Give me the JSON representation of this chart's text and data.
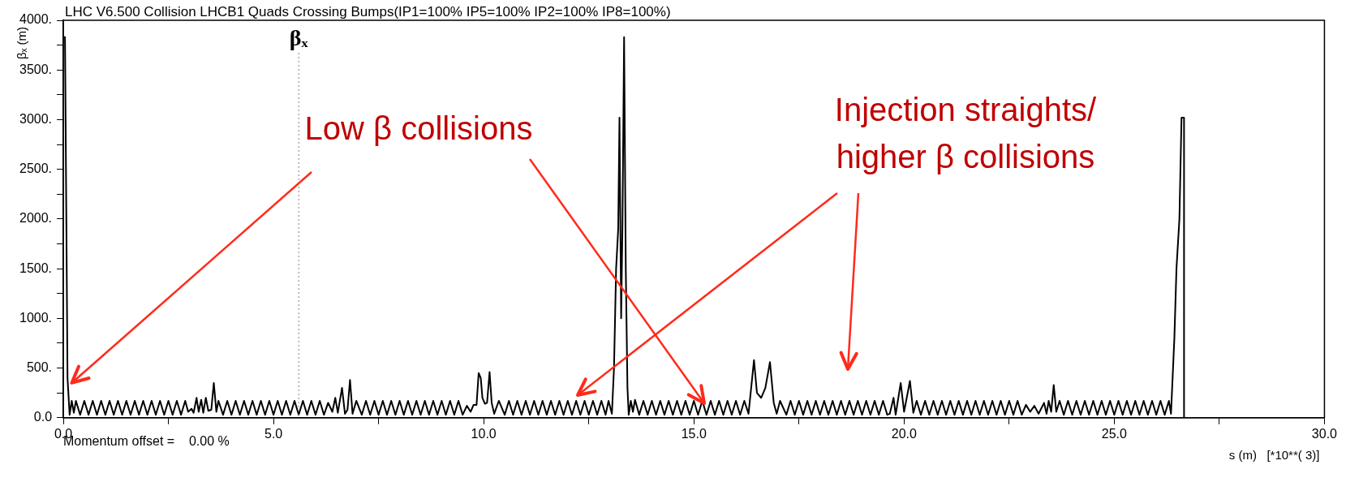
{
  "chart_data": {
    "type": "line",
    "title": "LHC V6.500 Collision LHCB1 Quads Crossing Bumps(IP1=100% IP5=100% IP2=100% IP8=100%)",
    "xlabel": "s (m)   [*10**( 3)]",
    "ylabel": "βₓ (m)",
    "annotations": [
      {
        "text": "Low β collisions",
        "x": 0.2,
        "y": 350
      },
      "Injection straights/",
      "higher β collisions",
      "Momentum offset =    0.00 %"
    ],
    "xlim": [
      0,
      30
    ],
    "ylim": [
      0,
      4000
    ],
    "xticks": [
      {
        "value": 0,
        "label": "0.0"
      },
      {
        "value": 2.5,
        "label": null
      },
      {
        "value": 5,
        "label": "5.0"
      },
      {
        "value": 7.5,
        "label": null
      },
      {
        "value": 10,
        "label": "10.0"
      },
      {
        "value": 12.5,
        "label": null
      },
      {
        "value": 15,
        "label": "15.0"
      },
      {
        "value": 17.5,
        "label": null
      },
      {
        "value": 20,
        "label": "20.0"
      },
      {
        "value": 22.5,
        "label": null
      },
      {
        "value": 25,
        "label": "25.0"
      },
      {
        "value": 27.5,
        "label": null
      },
      {
        "value": 30,
        "label": "30.0"
      }
    ],
    "yticks": [
      {
        "value": 0,
        "label": "0.0"
      },
      {
        "value": 250,
        "label": null
      },
      {
        "value": 500,
        "label": "500."
      },
      {
        "value": 750,
        "label": null
      },
      {
        "value": 1000,
        "label": "1000."
      },
      {
        "value": 1250,
        "label": null
      },
      {
        "value": 1500,
        "label": "1500."
      },
      {
        "value": 1750,
        "label": null
      },
      {
        "value": 2000,
        "label": "2000."
      },
      {
        "value": 2250,
        "label": null
      },
      {
        "value": 2500,
        "label": "2500."
      },
      {
        "value": 2750,
        "label": null
      },
      {
        "value": 3000,
        "label": "3000."
      },
      {
        "value": 3250,
        "label": null
      },
      {
        "value": 3500,
        "label": "3500."
      },
      {
        "value": 3750,
        "label": null
      },
      {
        "value": 4000,
        "label": "4000."
      }
    ],
    "ref_lines": [
      {
        "axis": "x",
        "value": 5.6,
        "label": "βₓ",
        "color": "#808080",
        "line_style": "dotted"
      }
    ],
    "grid": false,
    "legend": false,
    "marker": "none",
    "line_style": "solid",
    "series": [
      {
        "color": "#000000",
        "x": [
          0,
          0.04,
          0.1,
          0.15,
          0.2,
          0.25,
          0.3,
          0.4,
          0.5,
          0.6,
          0.7,
          0.8,
          0.9,
          1.0,
          1.1,
          1.2,
          1.3,
          1.4,
          1.5,
          1.6,
          1.7,
          1.8,
          1.9,
          2.0,
          2.1,
          2.2,
          2.3,
          2.4,
          2.5,
          2.6,
          2.7,
          2.8,
          2.9,
          2.97,
          3.05,
          3.1,
          3.17,
          3.22,
          3.28,
          3.33,
          3.39,
          3.45,
          3.52,
          3.58,
          3.64,
          3.69,
          3.8,
          3.9,
          4.0,
          4.1,
          4.2,
          4.3,
          4.4,
          4.5,
          4.6,
          4.7,
          4.8,
          4.9,
          5.0,
          5.1,
          5.2,
          5.3,
          5.4,
          5.5,
          5.6,
          5.7,
          5.8,
          5.9,
          6.0,
          6.1,
          6.2,
          6.3,
          6.4,
          6.47,
          6.53,
          6.63,
          6.7,
          6.76,
          6.82,
          6.88,
          6.97,
          7.1,
          7.2,
          7.3,
          7.4,
          7.5,
          7.6,
          7.7,
          7.8,
          7.9,
          8.0,
          8.1,
          8.2,
          8.3,
          8.4,
          8.5,
          8.6,
          8.7,
          8.8,
          8.9,
          9.0,
          9.1,
          9.2,
          9.3,
          9.4,
          9.5,
          9.6,
          9.69,
          9.76,
          9.83,
          9.88,
          9.93,
          9.97,
          10.03,
          10.08,
          10.14,
          10.19,
          10.25,
          10.36,
          10.5,
          10.6,
          10.7,
          10.8,
          10.9,
          11.0,
          11.1,
          11.2,
          11.3,
          11.4,
          11.5,
          11.6,
          11.7,
          11.8,
          11.9,
          12.0,
          12.1,
          12.2,
          12.3,
          12.4,
          12.5,
          12.6,
          12.7,
          12.8,
          12.9,
          12.97,
          13.05,
          13.1,
          13.15,
          13.2,
          13.23,
          13.27,
          13.3,
          13.34,
          13.38,
          13.42,
          13.45,
          13.5,
          13.55,
          13.6,
          13.7,
          13.8,
          13.9,
          14.0,
          14.1,
          14.2,
          14.3,
          14.4,
          14.5,
          14.6,
          14.7,
          14.8,
          14.9,
          15.0,
          15.1,
          15.2,
          15.3,
          15.4,
          15.5,
          15.6,
          15.7,
          15.8,
          15.9,
          16.0,
          16.1,
          16.2,
          16.3,
          16.43,
          16.5,
          16.6,
          16.7,
          16.81,
          16.9,
          16.97,
          17.05,
          17.2,
          17.3,
          17.4,
          17.5,
          17.6,
          17.7,
          17.8,
          17.9,
          18.0,
          18.1,
          18.2,
          18.3,
          18.4,
          18.5,
          18.6,
          18.7,
          18.8,
          18.9,
          19.0,
          19.1,
          19.2,
          19.3,
          19.4,
          19.5,
          19.6,
          19.66,
          19.75,
          19.8,
          19.92,
          20.0,
          20.14,
          20.22,
          20.3,
          20.4,
          20.5,
          20.6,
          20.7,
          20.8,
          20.9,
          21.0,
          21.1,
          21.2,
          21.3,
          21.4,
          21.5,
          21.6,
          21.7,
          21.8,
          21.9,
          22.0,
          22.1,
          22.2,
          22.3,
          22.4,
          22.5,
          22.6,
          22.7,
          22.8,
          22.9,
          23.0,
          23.1,
          23.2,
          23.33,
          23.39,
          23.44,
          23.5,
          23.56,
          23.62,
          23.7,
          23.8,
          23.9,
          24.0,
          24.1,
          24.2,
          24.3,
          24.4,
          24.5,
          24.6,
          24.7,
          24.8,
          24.9,
          25.0,
          25.1,
          25.2,
          25.3,
          25.4,
          25.5,
          25.6,
          25.7,
          25.8,
          25.9,
          26.0,
          26.1,
          26.2,
          26.3,
          26.35,
          26.43,
          26.48,
          26.55,
          26.6,
          26.66,
          26.66
        ],
        "values": [
          3830,
          3830,
          400,
          30,
          170,
          50,
          170,
          30,
          170,
          30,
          170,
          30,
          170,
          30,
          170,
          30,
          170,
          30,
          170,
          30,
          170,
          30,
          170,
          30,
          170,
          30,
          170,
          30,
          170,
          30,
          170,
          30,
          170,
          60,
          90,
          50,
          200,
          60,
          180,
          50,
          200,
          70,
          80,
          350,
          60,
          170,
          30,
          170,
          30,
          170,
          30,
          170,
          30,
          170,
          30,
          170,
          30,
          170,
          30,
          170,
          30,
          170,
          30,
          170,
          30,
          170,
          30,
          170,
          30,
          170,
          30,
          150,
          60,
          200,
          50,
          300,
          40,
          80,
          380,
          40,
          170,
          30,
          170,
          30,
          170,
          30,
          170,
          30,
          170,
          30,
          170,
          30,
          170,
          30,
          170,
          30,
          170,
          30,
          170,
          30,
          170,
          30,
          170,
          30,
          170,
          30,
          120,
          60,
          130,
          130,
          450,
          400,
          200,
          140,
          150,
          460,
          150,
          40,
          170,
          30,
          170,
          30,
          170,
          30,
          170,
          30,
          170,
          30,
          170,
          30,
          170,
          30,
          170,
          30,
          170,
          30,
          170,
          30,
          170,
          30,
          170,
          30,
          170,
          30,
          170,
          40,
          500,
          1500,
          1900,
          3020,
          1000,
          1900,
          3830,
          1500,
          300,
          30,
          170,
          60,
          180,
          30,
          170,
          30,
          170,
          30,
          170,
          30,
          170,
          30,
          170,
          30,
          170,
          30,
          170,
          30,
          170,
          30,
          170,
          30,
          170,
          30,
          170,
          30,
          170,
          30,
          170,
          40,
          580,
          250,
          200,
          300,
          560,
          150,
          40,
          170,
          30,
          170,
          30,
          170,
          30,
          170,
          30,
          170,
          30,
          170,
          30,
          170,
          30,
          170,
          30,
          170,
          30,
          170,
          30,
          170,
          30,
          170,
          30,
          170,
          30,
          40,
          200,
          30,
          350,
          60,
          370,
          50,
          170,
          30,
          170,
          30,
          170,
          30,
          170,
          30,
          170,
          30,
          170,
          30,
          170,
          30,
          170,
          30,
          170,
          30,
          170,
          30,
          170,
          30,
          170,
          30,
          170,
          30,
          130,
          60,
          120,
          40,
          150,
          40,
          170,
          60,
          330,
          60,
          170,
          30,
          170,
          30,
          170,
          30,
          170,
          30,
          170,
          30,
          170,
          30,
          170,
          30,
          170,
          30,
          170,
          30,
          170,
          30,
          170,
          30,
          170,
          30,
          170,
          30,
          170,
          40,
          800,
          1500,
          2000,
          3020,
          3020,
          0
        ]
      }
    ]
  }
}
